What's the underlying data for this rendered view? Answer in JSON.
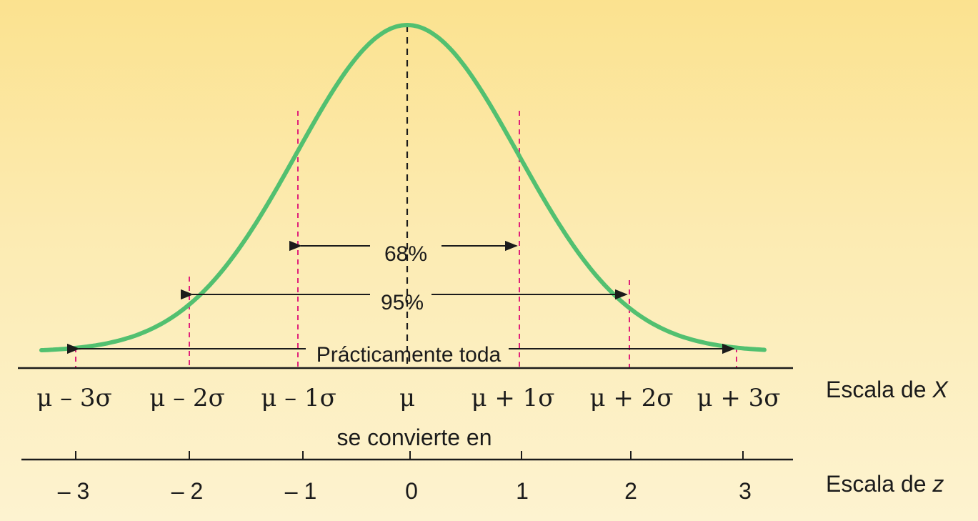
{
  "curve_color": "#52c070",
  "guide_color": "#e0207a",
  "line_color": "#1b1b1b",
  "x_scale": {
    "label": "Escala de ",
    "var": "X",
    "ticks": [
      "μ – 3σ",
      "μ – 2σ",
      "μ – 1σ",
      "μ",
      "μ + 1σ",
      "μ + 2σ",
      "μ + 3σ"
    ]
  },
  "connector": "se convierte en",
  "z_scale": {
    "label": "Escala de ",
    "var": "z",
    "ticks": [
      "– 3",
      "– 2",
      "– 1",
      "0",
      "1",
      "2",
      "3"
    ]
  },
  "ranges": {
    "r68": "68%",
    "r95": "95%",
    "all": "Prácticamente toda"
  }
}
